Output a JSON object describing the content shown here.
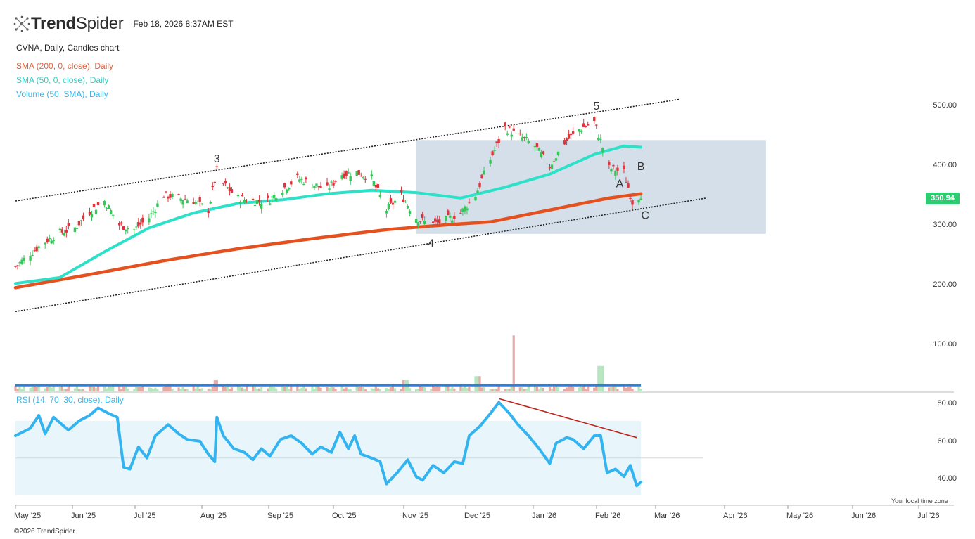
{
  "header": {
    "brand_bold": "Trend",
    "brand_light": "Spider",
    "timestamp": "Feb 18, 2026 8:37AM EST"
  },
  "legend": {
    "chart_title": "CVNA, Daily, Candles chart",
    "sma200": "SMA (200, 0, close), Daily",
    "sma50": "SMA (50, 0, close), Daily",
    "volume": "Volume (50, SMA), Daily",
    "rsi": "RSI (14, 70, 30, close), Daily"
  },
  "colors": {
    "up": "#35c759",
    "down": "#e0343c",
    "sma200": "#e5501f",
    "sma50": "#2de0c8",
    "rsi": "#33b4f0",
    "legend_sma200": "#e0603a",
    "legend_sma50": "#2ccfc0",
    "legend_volume": "#3ab6e8",
    "legend_rsi": "#3ab6e8",
    "zone": "#cdd9e5",
    "rsi_band": "#e8f6fb"
  },
  "price_axis": [
    "500.00",
    "400.00",
    "300.00",
    "200.00",
    "100.00"
  ],
  "rsi_axis": [
    "80.00",
    "60.00",
    "40.00"
  ],
  "last_price": "350.94",
  "x_axis": [
    "May '25",
    "Jun '25",
    "Jul '25",
    "Aug '25",
    "Sep '25",
    "Oct '25",
    "Nov '25",
    "Dec '25",
    "Jan '26",
    "Feb '26",
    "Mar '26",
    "Apr '26",
    "May '26",
    "Jun '26",
    "Jul '26"
  ],
  "wave_labels": [
    "3",
    "4",
    "5",
    "A",
    "B",
    "C"
  ],
  "footer": "©2026 TrendSpider",
  "timezone_note": "Your local time zone",
  "chart_data": {
    "type": "candlestick",
    "symbol": "CVNA",
    "interval": "Daily",
    "ylim": [
      120,
      530
    ],
    "x_range": [
      "2025-04-28",
      "2026-07-06"
    ],
    "trend_points": [
      [
        "2025-04-28",
        230
      ],
      [
        "2025-05-05",
        252
      ],
      [
        "2025-05-12",
        272
      ],
      [
        "2025-05-19",
        287
      ],
      [
        "2025-05-26",
        295
      ],
      [
        "2025-06-02",
        322
      ],
      [
        "2025-06-09",
        340
      ],
      [
        "2025-06-16",
        300
      ],
      [
        "2025-06-23",
        292
      ],
      [
        "2025-06-30",
        312
      ],
      [
        "2025-07-07",
        350
      ],
      [
        "2025-07-14",
        345
      ],
      [
        "2025-07-21",
        340
      ],
      [
        "2025-07-28",
        325
      ],
      [
        "2025-08-01",
        390
      ],
      [
        "2025-08-04",
        368
      ],
      [
        "2025-08-11",
        345
      ],
      [
        "2025-08-18",
        340
      ],
      [
        "2025-08-25",
        340
      ],
      [
        "2025-09-01",
        360
      ],
      [
        "2025-09-08",
        378
      ],
      [
        "2025-09-15",
        368
      ],
      [
        "2025-09-22",
        360
      ],
      [
        "2025-09-29",
        385
      ],
      [
        "2025-10-06",
        388
      ],
      [
        "2025-10-13",
        378
      ],
      [
        "2025-10-20",
        325
      ],
      [
        "2025-10-27",
        350
      ],
      [
        "2025-11-03",
        312
      ],
      [
        "2025-11-10",
        300
      ],
      [
        "2025-11-17",
        308
      ],
      [
        "2025-11-24",
        320
      ],
      [
        "2025-12-01",
        350
      ],
      [
        "2025-12-08",
        410
      ],
      [
        "2025-12-15",
        462
      ],
      [
        "2025-12-22",
        448
      ],
      [
        "2025-12-29",
        432
      ],
      [
        "2026-01-05",
        398
      ],
      [
        "2026-01-12",
        438
      ],
      [
        "2026-01-19",
        460
      ],
      [
        "2026-01-26",
        472
      ],
      [
        "2026-01-30",
        430
      ],
      [
        "2026-02-02",
        395
      ],
      [
        "2026-02-09",
        388
      ],
      [
        "2026-02-13",
        338
      ],
      [
        "2026-02-17",
        350.94
      ]
    ],
    "sma50": [
      [
        "2025-04-28",
        202
      ],
      [
        "2025-05-19",
        212
      ],
      [
        "2025-06-09",
        255
      ],
      [
        "2025-06-30",
        295
      ],
      [
        "2025-07-21",
        320
      ],
      [
        "2025-08-11",
        336
      ],
      [
        "2025-09-01",
        342
      ],
      [
        "2025-09-22",
        352
      ],
      [
        "2025-10-13",
        358
      ],
      [
        "2025-11-03",
        354
      ],
      [
        "2025-11-24",
        345
      ],
      [
        "2025-12-15",
        363
      ],
      [
        "2026-01-05",
        385
      ],
      [
        "2026-01-26",
        418
      ],
      [
        "2026-02-09",
        432
      ],
      [
        "2026-02-17",
        430
      ]
    ],
    "sma200": [
      [
        "2025-04-28",
        195
      ],
      [
        "2025-06-02",
        217
      ],
      [
        "2025-07-07",
        240
      ],
      [
        "2025-08-11",
        260
      ],
      [
        "2025-09-15",
        277
      ],
      [
        "2025-10-20",
        292
      ],
      [
        "2025-11-17",
        300
      ],
      [
        "2025-12-08",
        305
      ],
      [
        "2026-01-05",
        325
      ],
      [
        "2026-02-02",
        345
      ],
      [
        "2026-02-17",
        352
      ]
    ],
    "channel_upper": [
      [
        "2025-04-28",
        340
      ],
      [
        "2026-03-07",
        510
      ]
    ],
    "channel_lower": [
      [
        "2025-04-28",
        155
      ],
      [
        "2026-03-20",
        345
      ]
    ],
    "zone": {
      "x": [
        "2025-11-03",
        "2026-04-17"
      ],
      "y": [
        285,
        442
      ]
    },
    "volume": {
      "ylim": [
        0,
        120
      ],
      "sma_level": 12,
      "spikes": [
        [
          "2025-08-01",
          22
        ],
        [
          "2025-10-29",
          22
        ],
        [
          "2025-12-02",
          30
        ],
        [
          "2025-12-20",
          110
        ],
        [
          "2026-01-29",
          50
        ]
      ]
    },
    "rsi": {
      "ylim": [
        26,
        84
      ],
      "overbought": 70,
      "oversold": 30,
      "points": [
        [
          "2025-04-28",
          62
        ],
        [
          "2025-05-05",
          66
        ],
        [
          "2025-05-09",
          73
        ],
        [
          "2025-05-12",
          63
        ],
        [
          "2025-05-16",
          72
        ],
        [
          "2025-05-20",
          68
        ],
        [
          "2025-05-23",
          65
        ],
        [
          "2025-05-28",
          70
        ],
        [
          "2025-06-02",
          73
        ],
        [
          "2025-06-06",
          77
        ],
        [
          "2025-06-11",
          74
        ],
        [
          "2025-06-15",
          72
        ],
        [
          "2025-06-18",
          45
        ],
        [
          "2025-06-21",
          44
        ],
        [
          "2025-06-25",
          56
        ],
        [
          "2025-06-29",
          50
        ],
        [
          "2025-07-03",
          62
        ],
        [
          "2025-07-09",
          68
        ],
        [
          "2025-07-14",
          63
        ],
        [
          "2025-07-18",
          60
        ],
        [
          "2025-07-24",
          59
        ],
        [
          "2025-07-28",
          52
        ],
        [
          "2025-07-31",
          48
        ],
        [
          "2025-08-01",
          72
        ],
        [
          "2025-08-04",
          62
        ],
        [
          "2025-08-09",
          55
        ],
        [
          "2025-08-14",
          53
        ],
        [
          "2025-08-18",
          49
        ],
        [
          "2025-08-22",
          55
        ],
        [
          "2025-08-26",
          51
        ],
        [
          "2025-08-31",
          60
        ],
        [
          "2025-09-05",
          62
        ],
        [
          "2025-09-10",
          58
        ],
        [
          "2025-09-15",
          52
        ],
        [
          "2025-09-19",
          56
        ],
        [
          "2025-09-24",
          53
        ],
        [
          "2025-09-28",
          64
        ],
        [
          "2025-10-02",
          55
        ],
        [
          "2025-10-05",
          62
        ],
        [
          "2025-10-08",
          52
        ],
        [
          "2025-10-13",
          50
        ],
        [
          "2025-10-17",
          48
        ],
        [
          "2025-10-20",
          36
        ],
        [
          "2025-10-25",
          42
        ],
        [
          "2025-10-30",
          49
        ],
        [
          "2025-11-03",
          40
        ],
        [
          "2025-11-06",
          38
        ],
        [
          "2025-11-11",
          46
        ],
        [
          "2025-11-16",
          42
        ],
        [
          "2025-11-21",
          48
        ],
        [
          "2025-11-25",
          47
        ],
        [
          "2025-11-28",
          62
        ],
        [
          "2025-12-03",
          67
        ],
        [
          "2025-12-08",
          74
        ],
        [
          "2025-12-12",
          80
        ],
        [
          "2025-12-17",
          74
        ],
        [
          "2025-12-21",
          68
        ],
        [
          "2025-12-26",
          62
        ],
        [
          "2025-12-31",
          55
        ],
        [
          "2026-01-05",
          47
        ],
        [
          "2026-01-08",
          58
        ],
        [
          "2026-01-13",
          61
        ],
        [
          "2026-01-16",
          60
        ],
        [
          "2026-01-21",
          55
        ],
        [
          "2026-01-26",
          62
        ],
        [
          "2026-01-29",
          62
        ],
        [
          "2026-02-01",
          42
        ],
        [
          "2026-02-05",
          44
        ],
        [
          "2026-02-09",
          40
        ],
        [
          "2026-02-12",
          46
        ],
        [
          "2026-02-15",
          35
        ],
        [
          "2026-02-17",
          37
        ]
      ],
      "divergence_line": [
        [
          "2025-12-12",
          82
        ],
        [
          "2026-02-15",
          61
        ]
      ]
    }
  }
}
